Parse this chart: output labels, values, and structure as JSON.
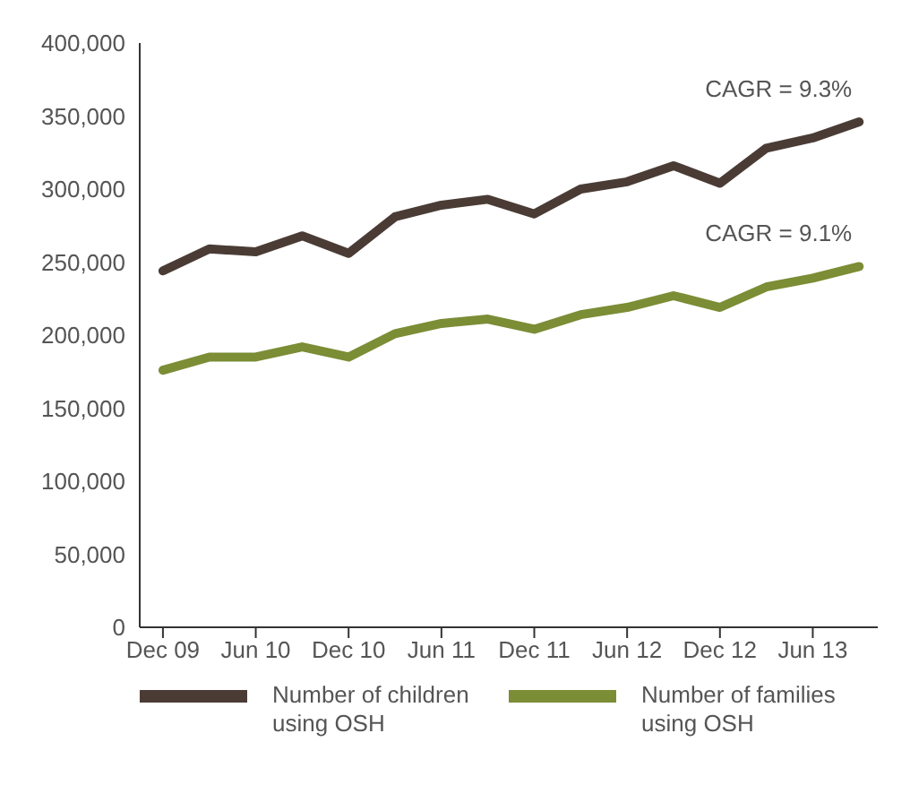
{
  "chart_data": {
    "type": "line",
    "categories": [
      "Dec 09",
      null,
      "Jun 10",
      null,
      "Dec 10",
      null,
      "Jun 11",
      null,
      "Dec 11",
      null,
      "Jun 12",
      null,
      "Dec 12",
      null,
      "Jun 13",
      null
    ],
    "series": [
      {
        "name": "Number of children using OSH",
        "color": "#4a3c35",
        "values": [
          244000,
          259000,
          257000,
          268000,
          256000,
          281000,
          289000,
          293000,
          283000,
          300000,
          305000,
          316000,
          304000,
          328000,
          335000,
          346000
        ]
      },
      {
        "name": "Number of families using OSH",
        "color": "#7b8d35",
        "values": [
          176000,
          185000,
          185000,
          192000,
          185000,
          201000,
          208000,
          211000,
          204000,
          214000,
          219000,
          227000,
          219000,
          233000,
          239000,
          247000
        ]
      }
    ],
    "annotations": [
      "CAGR = 9.3%",
      "CAGR = 9.1%"
    ],
    "ylim": [
      0,
      400000
    ],
    "yticks": [
      0,
      {
        "value": 50000,
        "label": "50,000"
      },
      {
        "value": 100000,
        "label": "100,000"
      },
      {
        "value": 150000,
        "label": "150,000"
      },
      {
        "value": 200000,
        "label": "200,000"
      },
      {
        "value": 250000,
        "label": "250,000"
      },
      {
        "value": 300000,
        "label": "300,000"
      },
      {
        "value": 350000,
        "label": "350,000"
      },
      {
        "value": 400000,
        "label": "400,000"
      }
    ],
    "grid": false,
    "legend": "bottom",
    "marker": "none",
    "line_style": "solid"
  }
}
